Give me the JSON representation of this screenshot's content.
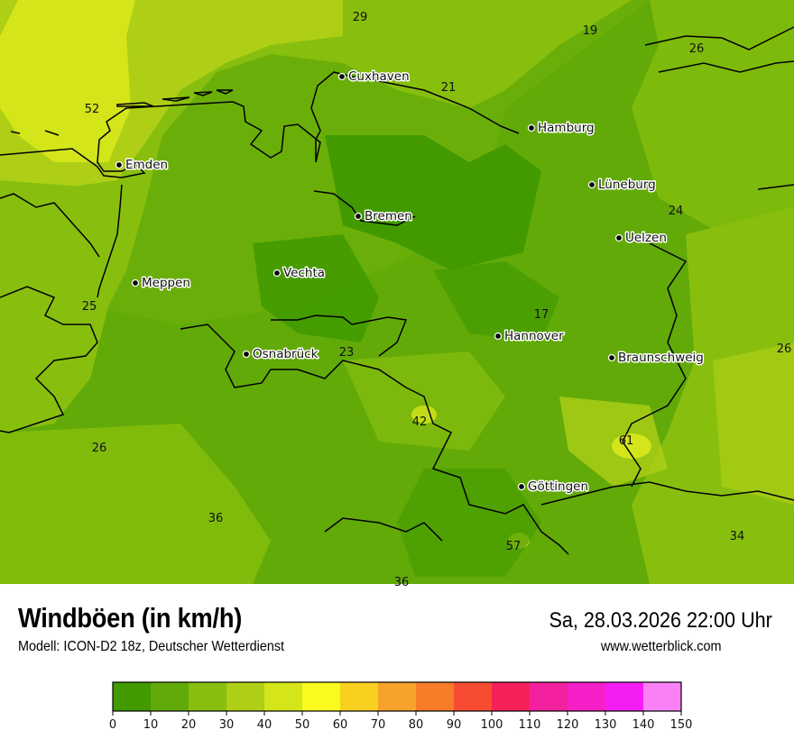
{
  "header": {
    "title": "Windböen (in km/h)",
    "subtitle": "Modell: ICON-D2 18z, Deutscher Wetterdienst",
    "datetime": "Sa, 28.03.2026 22:00 Uhr",
    "website": "www.wetterblick.com"
  },
  "map": {
    "cities": [
      {
        "name": "Cuxhaven"
      },
      {
        "name": "Hamburg"
      },
      {
        "name": "Emden"
      },
      {
        "name": "Lüneburg"
      },
      {
        "name": "Bremen"
      },
      {
        "name": "Uelzen"
      },
      {
        "name": "Vechta"
      },
      {
        "name": "Meppen"
      },
      {
        "name": "Hannover"
      },
      {
        "name": "Osnabrück"
      },
      {
        "name": "Braunschweig"
      },
      {
        "name": "Göttingen"
      }
    ],
    "values": [
      "29",
      "19",
      "26",
      "21",
      "52",
      "24",
      "25",
      "17",
      "23",
      "26",
      "42",
      "61",
      "26",
      "36",
      "57",
      "34",
      "36"
    ]
  },
  "legend": {
    "ticks": [
      "0",
      "10",
      "20",
      "30",
      "40",
      "50",
      "60",
      "70",
      "80",
      "90",
      "100",
      "110",
      "120",
      "130",
      "140",
      "150"
    ],
    "colors": [
      "#429A00",
      "#62AA08",
      "#88BF0E",
      "#AECF16",
      "#D4E51A",
      "#F9FA1E",
      "#F8D020",
      "#F7A22A",
      "#F87B28",
      "#F84C32",
      "#F82058",
      "#F3219E",
      "#F620C8",
      "#F41EF2",
      "#FA80F6"
    ]
  }
}
